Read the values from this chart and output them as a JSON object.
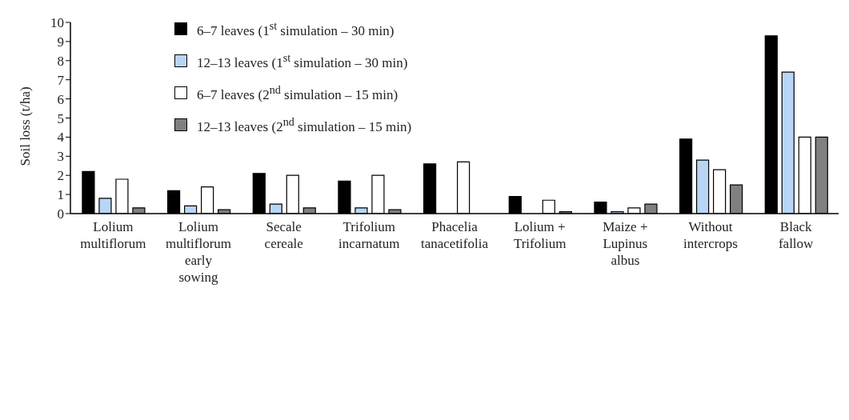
{
  "chart_data": {
    "type": "bar",
    "ylabel": "Soil loss (t/ha)",
    "categories": [
      "Lolium multiflorum",
      "Lolium multiflorum early sowing",
      "Secale cereale",
      "Trifolium incarnatum",
      "Phacelia tanacetifolia",
      "Lolium + Trifolium",
      "Maize + Lupinus albus",
      "Without intercrops",
      "Black fallow"
    ],
    "series": [
      {
        "name": "6–7 leaves (1$^{st}$ simulation – 30 min)",
        "color": "#000000",
        "values": [
          2.2,
          1.2,
          2.1,
          1.7,
          2.6,
          0.9,
          0.6,
          3.9,
          9.3
        ]
      },
      {
        "name": "12–13 leaves (1$^{st}$ simulation – 30 min)",
        "color": "#b9d5f6",
        "values": [
          0.8,
          0.4,
          0.5,
          0.3,
          0,
          0,
          0.1,
          2.8,
          7.4
        ]
      },
      {
        "name": "6–7 leaves (2$^{nd}$ simulation – 15 min)",
        "color": "#ffffff",
        "values": [
          1.8,
          1.4,
          2.0,
          2.0,
          2.7,
          0.7,
          0.3,
          2.3,
          4.0
        ]
      },
      {
        "name": "12–13 leaves (2$^{nd}$ simulation – 15 min)",
        "color": "#808080",
        "values": [
          0.3,
          0.2,
          0.3,
          0.2,
          null,
          0.1,
          0.5,
          1.5,
          4.0
        ]
      }
    ],
    "ylim": [
      0,
      10
    ],
    "yticks": [
      0,
      1,
      2,
      3,
      4,
      5,
      6,
      7,
      8,
      9,
      10
    ],
    "grid": false,
    "legend": "top left"
  }
}
